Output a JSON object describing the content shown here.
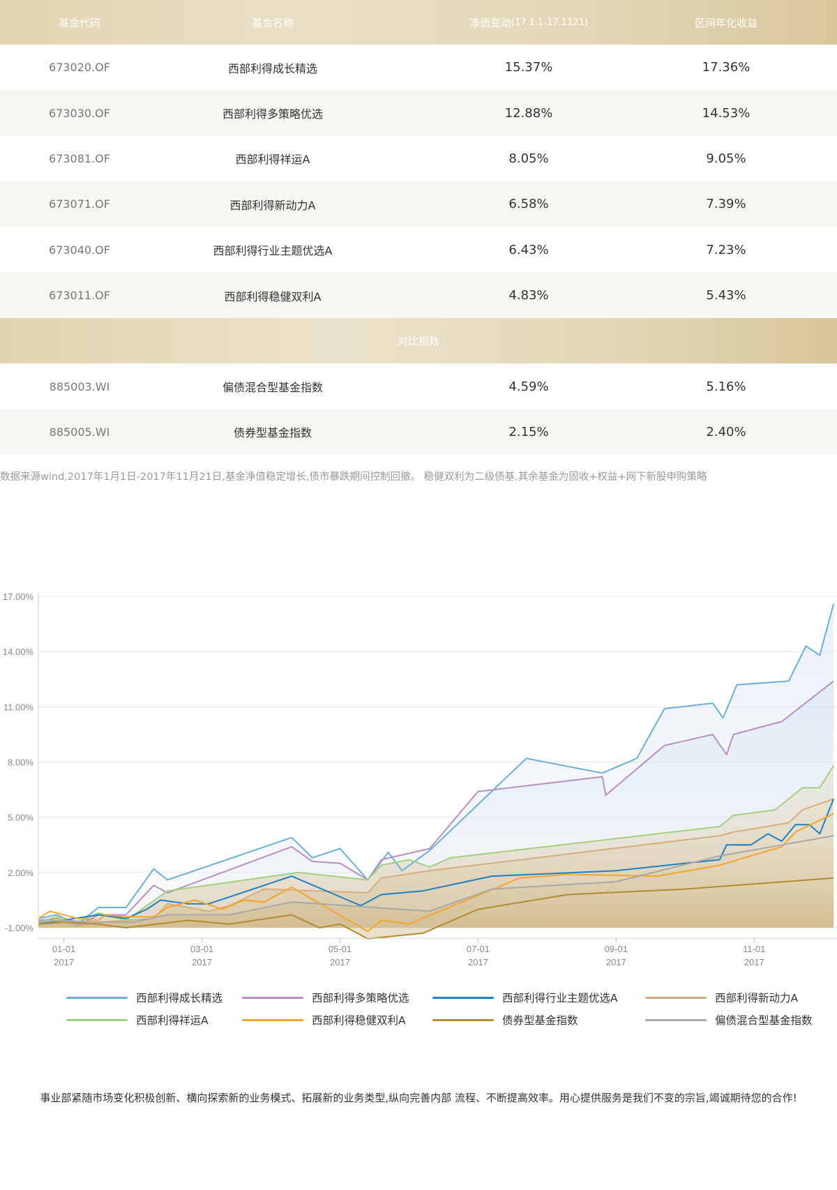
{
  "table": {
    "headers": {
      "code": "基金代码",
      "name": "基金名称",
      "change": "净值变动",
      "change_range": "(17.1.1-17.1121)",
      "annual": "区间年化收益"
    },
    "funds": [
      {
        "code": "673020.OF",
        "name": "西部利得成长精选",
        "change": "15.37%",
        "annual": "17.36%"
      },
      {
        "code": "673030.OF",
        "name": "西部利得多策略优选",
        "change": "12.88%",
        "annual": "14.53%"
      },
      {
        "code": "673081.OF",
        "name": "西部利得祥运A",
        "change": "8.05%",
        "annual": "9.05%"
      },
      {
        "code": "673071.OF",
        "name": "西部利得新动力A",
        "change": "6.58%",
        "annual": "7.39%"
      },
      {
        "code": "673040.OF",
        "name": "西部利得行业主题优选A",
        "change": "6.43%",
        "annual": "7.23%"
      },
      {
        "code": "673011.OF",
        "name": "西部利得稳健双利A",
        "change": "4.83%",
        "annual": "5.43%"
      }
    ],
    "section_title": "对比指数",
    "indices": [
      {
        "code": "885003.WI",
        "name": "偏债混合型基金指数",
        "change": "4.59%",
        "annual": "5.16%"
      },
      {
        "code": "885005.WI",
        "name": "债券型基金指数",
        "change": "2.15%",
        "annual": "2.40%"
      }
    ]
  },
  "note": "数据来源wind,2017年1月1日-2017年11月21日,基金净值稳定增长,债市暴跌期间控制回撤。 稳健双利为二级债基,其余基金为固收+权益+网下新股申购策略",
  "footer": "事业部紧随市场变化积极创新、横向探索新的业务模式、拓展新的业务类型,纵向完善内部 流程、不断提高效率。用心提供服务是我们不变的宗旨,竭诚期待您的合作!",
  "chart_data": {
    "type": "line",
    "y_ticks": [
      "17.00%",
      "14.00%",
      "11.00%",
      "8.00%",
      "5.00%",
      "2.00%",
      "-1.00%"
    ],
    "ylim": [
      -1,
      17
    ],
    "x_ticks": [
      {
        "t": 1,
        "month": "01-01",
        "year": "2017"
      },
      {
        "t": 3,
        "month": "03-01",
        "year": "2017"
      },
      {
        "t": 5,
        "month": "05-01",
        "year": "2017"
      },
      {
        "t": 7,
        "month": "07-01",
        "year": "2017"
      },
      {
        "t": 9,
        "month": "09-01",
        "year": "2017"
      },
      {
        "t": 11,
        "month": "11-01",
        "year": "2017"
      }
    ],
    "xlim": [
      0.63,
      12.2
    ],
    "series": [
      {
        "name": "西部利得成长精选",
        "color": "#6aaedb",
        "fill": true,
        "points": [
          [
            0.63,
            -0.5
          ],
          [
            0.9,
            -0.3
          ],
          [
            1.2,
            -0.8
          ],
          [
            1.5,
            0.1
          ],
          [
            1.9,
            0.1
          ],
          [
            2.3,
            2.2
          ],
          [
            2.5,
            1.6
          ],
          [
            4.3,
            3.9
          ],
          [
            4.6,
            2.8
          ],
          [
            5.0,
            3.3
          ],
          [
            5.4,
            1.6
          ],
          [
            5.7,
            3.1
          ],
          [
            5.9,
            2.1
          ],
          [
            6.3,
            3.2
          ],
          [
            7.7,
            8.2
          ],
          [
            8.8,
            7.4
          ],
          [
            9.3,
            8.2
          ],
          [
            9.7,
            10.9
          ],
          [
            10.4,
            11.2
          ],
          [
            10.55,
            10.4
          ],
          [
            10.75,
            12.2
          ],
          [
            11.5,
            12.4
          ],
          [
            11.75,
            14.3
          ],
          [
            11.95,
            13.8
          ],
          [
            12.15,
            16.6
          ]
        ]
      },
      {
        "name": "西部利得多策略优选",
        "color": "#b78fc2",
        "fill": true,
        "points": [
          [
            0.63,
            -0.6
          ],
          [
            0.9,
            -0.5
          ],
          [
            1.2,
            -0.9
          ],
          [
            1.5,
            -0.3
          ],
          [
            1.9,
            -0.3
          ],
          [
            2.3,
            1.3
          ],
          [
            2.5,
            0.9
          ],
          [
            4.3,
            3.4
          ],
          [
            4.6,
            2.6
          ],
          [
            5.0,
            2.5
          ],
          [
            5.4,
            1.6
          ],
          [
            5.6,
            2.7
          ],
          [
            6.3,
            3.3
          ],
          [
            7.0,
            6.4
          ],
          [
            8.8,
            7.2
          ],
          [
            8.85,
            6.2
          ],
          [
            9.7,
            8.9
          ],
          [
            10.4,
            9.5
          ],
          [
            10.6,
            8.4
          ],
          [
            10.7,
            9.5
          ],
          [
            11.4,
            10.2
          ],
          [
            12.15,
            12.4
          ]
        ]
      },
      {
        "name": "西部利得祥运A",
        "color": "#a2d07e",
        "fill": true,
        "points": [
          [
            0.63,
            -0.7
          ],
          [
            0.9,
            -0.4
          ],
          [
            1.2,
            -0.7
          ],
          [
            1.5,
            -0.2
          ],
          [
            1.9,
            -0.6
          ],
          [
            2.5,
            1.0
          ],
          [
            4.4,
            2.0
          ],
          [
            5.4,
            1.6
          ],
          [
            5.6,
            2.4
          ],
          [
            6.0,
            2.7
          ],
          [
            6.3,
            2.3
          ],
          [
            6.6,
            2.8
          ],
          [
            10.5,
            4.5
          ],
          [
            10.7,
            5.1
          ],
          [
            11.3,
            5.4
          ],
          [
            11.7,
            6.6
          ],
          [
            11.95,
            6.6
          ],
          [
            12.15,
            7.8
          ]
        ]
      },
      {
        "name": "西部利得新动力A",
        "color": "#d5ad7e",
        "fill": true,
        "points": [
          [
            0.63,
            -0.8
          ],
          [
            0.9,
            -0.5
          ],
          [
            1.2,
            -0.9
          ],
          [
            1.5,
            -0.7
          ],
          [
            1.9,
            -0.6
          ],
          [
            2.3,
            -0.5
          ],
          [
            2.5,
            0.3
          ],
          [
            2.8,
            0.1
          ],
          [
            3.1,
            -0.1
          ],
          [
            3.4,
            0.2
          ],
          [
            3.9,
            1.1
          ],
          [
            5.4,
            0.9
          ],
          [
            5.6,
            1.7
          ],
          [
            6.3,
            2.1
          ],
          [
            10.5,
            4.0
          ],
          [
            10.7,
            4.2
          ],
          [
            11.5,
            4.7
          ],
          [
            11.7,
            5.4
          ],
          [
            12.15,
            6.0
          ]
        ]
      },
      {
        "name": "西部利得行业主题优选A",
        "color": "#1f7fc0",
        "fill": false,
        "points": [
          [
            0.63,
            -0.8
          ],
          [
            1.5,
            -0.3
          ],
          [
            1.9,
            -0.5
          ],
          [
            2.2,
            0.0
          ],
          [
            2.4,
            0.5
          ],
          [
            2.8,
            0.3
          ],
          [
            3.1,
            0.3
          ],
          [
            4.3,
            1.8
          ],
          [
            5.3,
            0.2
          ],
          [
            5.6,
            0.8
          ],
          [
            6.2,
            1.0
          ],
          [
            7.2,
            1.8
          ],
          [
            9.0,
            2.1
          ],
          [
            10.0,
            2.5
          ],
          [
            10.5,
            2.7
          ],
          [
            10.6,
            3.5
          ],
          [
            10.95,
            3.5
          ],
          [
            11.2,
            4.1
          ],
          [
            11.4,
            3.7
          ],
          [
            11.6,
            4.6
          ],
          [
            11.8,
            4.6
          ],
          [
            11.95,
            4.1
          ],
          [
            12.15,
            6.0
          ]
        ]
      },
      {
        "name": "西部利得稳健双利A",
        "color": "#f3a52c",
        "fill": false,
        "points": [
          [
            0.63,
            -0.5
          ],
          [
            0.8,
            -0.1
          ],
          [
            1.2,
            -0.5
          ],
          [
            1.5,
            -0.6
          ],
          [
            1.6,
            -0.3
          ],
          [
            1.9,
            -0.4
          ],
          [
            2.3,
            -0.4
          ],
          [
            2.5,
            0.1
          ],
          [
            2.9,
            0.5
          ],
          [
            3.3,
            0.0
          ],
          [
            3.6,
            0.5
          ],
          [
            3.9,
            0.4
          ],
          [
            4.3,
            1.2
          ],
          [
            5.4,
            -1.2
          ],
          [
            5.6,
            -0.6
          ],
          [
            6.0,
            -0.8
          ],
          [
            7.6,
            1.7
          ],
          [
            8.3,
            1.9
          ],
          [
            9.6,
            1.8
          ],
          [
            10.5,
            2.4
          ],
          [
            11.4,
            3.4
          ],
          [
            11.6,
            4.2
          ],
          [
            12.15,
            5.2
          ]
        ]
      },
      {
        "name": "债券型基金指数",
        "color": "#b38a2c",
        "fill": true,
        "points": [
          [
            0.63,
            -0.8
          ],
          [
            1.0,
            -0.7
          ],
          [
            1.5,
            -0.8
          ],
          [
            1.9,
            -1.0
          ],
          [
            2.8,
            -0.6
          ],
          [
            3.4,
            -0.8
          ],
          [
            4.3,
            -0.3
          ],
          [
            4.7,
            -1.0
          ],
          [
            5.0,
            -0.8
          ],
          [
            5.4,
            -1.6
          ],
          [
            6.2,
            -1.3
          ],
          [
            7.0,
            0.0
          ],
          [
            8.3,
            0.8
          ],
          [
            10.0,
            1.1
          ],
          [
            12.15,
            1.7
          ]
        ]
      },
      {
        "name": "偏债混合型基金指数",
        "color": "#a8a8a8",
        "fill": true,
        "points": [
          [
            0.63,
            -0.7
          ],
          [
            1.0,
            -0.6
          ],
          [
            1.5,
            -0.7
          ],
          [
            2.0,
            -0.7
          ],
          [
            2.5,
            -0.3
          ],
          [
            3.4,
            -0.3
          ],
          [
            4.3,
            0.4
          ],
          [
            6.3,
            -0.1
          ],
          [
            7.2,
            1.1
          ],
          [
            9.0,
            1.5
          ],
          [
            10.5,
            2.9
          ],
          [
            11.4,
            3.5
          ],
          [
            12.15,
            4.0
          ]
        ]
      }
    ],
    "legend_position": "bottom"
  }
}
